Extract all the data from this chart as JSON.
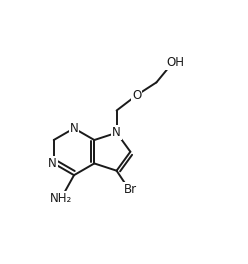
{
  "bg_color": "#ffffff",
  "line_color": "#1a1a1a",
  "line_width": 1.4,
  "font_size": 8.5,
  "figsize": [
    2.48,
    2.64
  ],
  "dpi": 100,
  "xlim": [
    0.0,
    1.0
  ],
  "ylim": [
    0.0,
    1.0
  ]
}
